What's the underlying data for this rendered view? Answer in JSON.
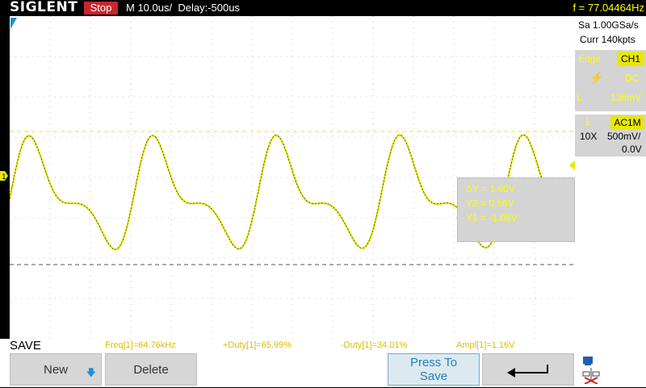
{
  "header": {
    "brand": "SIGLENT",
    "run_state": "Stop",
    "timebase": "M 10.0us/",
    "delay": "Delay:-500us",
    "trigger_freq": "f = 77.04464Hz"
  },
  "acquisition": {
    "sample_rate": "Sa 1.00GSa/s",
    "memory": "Curr 140kpts"
  },
  "trigger_panel": {
    "type_label": "Edge",
    "source": "CH1",
    "coupling": "DC",
    "level": "136mV"
  },
  "channel_panel": {
    "index": "1",
    "coupling": "AC1M",
    "probe": "10X",
    "scale": "500mV/",
    "offset": "0.0V"
  },
  "cursor_readout": {
    "delta_y": "ΔY = 1.60V",
    "y2": "Y2 = 0.56V",
    "y1": "Y1 = -1.05V"
  },
  "measurements": [
    {
      "label": "Freq[1]=64.76kHz"
    },
    {
      "label": "+Duty[1]=65.99%"
    },
    {
      "label": "-Duty[1]=34.01%"
    },
    {
      "label": "Ampl[1]=1.16V"
    }
  ],
  "menu": {
    "title": "SAVE",
    "new_label": "New",
    "delete_label": "Delete",
    "press_to_save_line1": "Press To",
    "press_to_save_line2": "Save"
  },
  "colors": {
    "trace": "#e8e800",
    "accent": "#ffff00",
    "stop": "#c8262e"
  }
}
